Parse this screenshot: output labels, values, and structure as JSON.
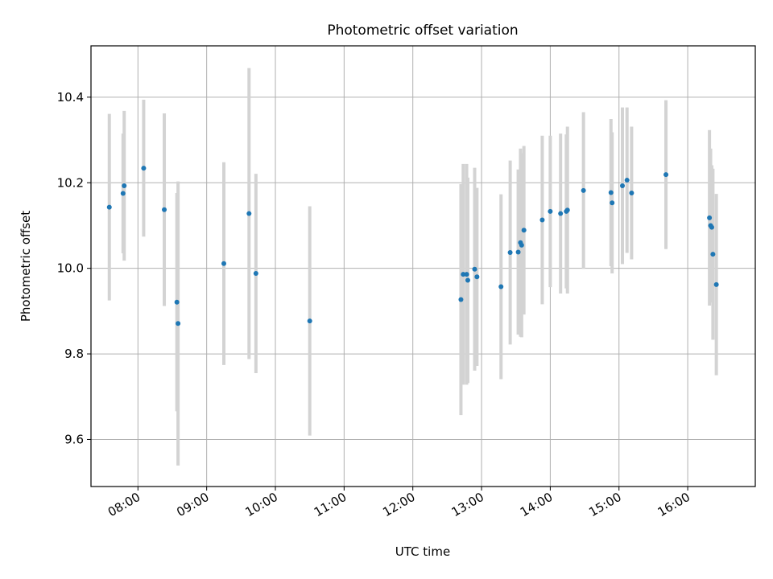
{
  "chart_data": {
    "type": "scatter",
    "title": "Photometric offset variation",
    "xlabel": "UTC time",
    "ylabel": "Photometric offset",
    "x_axis_type": "time",
    "xlim": [
      "07:19",
      "16:59"
    ],
    "ylim": [
      9.49,
      10.52
    ],
    "grid": true,
    "x_ticks": [
      "08:00",
      "09:00",
      "10:00",
      "11:00",
      "12:00",
      "13:00",
      "14:00",
      "15:00",
      "16:00"
    ],
    "y_ticks": [
      9.6,
      9.8,
      10.0,
      10.2,
      10.4
    ],
    "y_tick_labels": [
      "9.6",
      "9.8",
      "10.0",
      "10.2",
      "10.4"
    ],
    "colors": {
      "point": "#1f77b4",
      "errorbar": "#d3d3d3",
      "grid": "#b0b0b0"
    },
    "points": [
      {
        "x": "07:35",
        "y": 10.143,
        "yerr": 0.218
      },
      {
        "x": "07:47",
        "y": 10.175,
        "yerr": 0.14
      },
      {
        "x": "07:48",
        "y": 10.193,
        "yerr": 0.175
      },
      {
        "x": "08:05",
        "y": 10.234,
        "yerr": 0.16
      },
      {
        "x": "08:23",
        "y": 10.137,
        "yerr": 0.225
      },
      {
        "x": "08:34",
        "y": 9.921,
        "yerr": 0.255
      },
      {
        "x": "08:35",
        "y": 9.871,
        "yerr": 0.332
      },
      {
        "x": "09:15",
        "y": 10.011,
        "yerr": 0.237
      },
      {
        "x": "09:37",
        "y": 10.128,
        "yerr": 0.34
      },
      {
        "x": "09:43",
        "y": 9.988,
        "yerr": 0.233
      },
      {
        "x": "10:30",
        "y": 9.877,
        "yerr": 0.268
      },
      {
        "x": "12:42",
        "y": 9.927,
        "yerr": 0.27
      },
      {
        "x": "12:44",
        "y": 9.986,
        "yerr": 0.258
      },
      {
        "x": "12:47",
        "y": 9.986,
        "yerr": 0.258
      },
      {
        "x": "12:48",
        "y": 9.972,
        "yerr": 0.24
      },
      {
        "x": "12:54",
        "y": 9.998,
        "yerr": 0.237
      },
      {
        "x": "12:56",
        "y": 9.98,
        "yerr": 0.208
      },
      {
        "x": "13:17",
        "y": 9.957,
        "yerr": 0.216
      },
      {
        "x": "13:25",
        "y": 10.037,
        "yerr": 0.215
      },
      {
        "x": "13:32",
        "y": 10.038,
        "yerr": 0.193
      },
      {
        "x": "13:34",
        "y": 10.06,
        "yerr": 0.22
      },
      {
        "x": "13:35",
        "y": 10.054,
        "yerr": 0.215
      },
      {
        "x": "13:37",
        "y": 10.089,
        "yerr": 0.197
      },
      {
        "x": "13:53",
        "y": 10.113,
        "yerr": 0.197
      },
      {
        "x": "14:00",
        "y": 10.133,
        "yerr": 0.177
      },
      {
        "x": "14:09",
        "y": 10.128,
        "yerr": 0.187
      },
      {
        "x": "14:14",
        "y": 10.133,
        "yerr": 0.18
      },
      {
        "x": "14:15",
        "y": 10.136,
        "yerr": 0.195
      },
      {
        "x": "14:29",
        "y": 10.182,
        "yerr": 0.183
      },
      {
        "x": "14:53",
        "y": 10.177,
        "yerr": 0.172
      },
      {
        "x": "14:54",
        "y": 10.153,
        "yerr": 0.165
      },
      {
        "x": "15:03",
        "y": 10.193,
        "yerr": 0.183
      },
      {
        "x": "15:07",
        "y": 10.206,
        "yerr": 0.17
      },
      {
        "x": "15:11",
        "y": 10.176,
        "yerr": 0.155
      },
      {
        "x": "15:41",
        "y": 10.219,
        "yerr": 0.174
      },
      {
        "x": "16:19",
        "y": 10.118,
        "yerr": 0.205
      },
      {
        "x": "16:20",
        "y": 10.1,
        "yerr": 0.18
      },
      {
        "x": "16:21",
        "y": 10.096,
        "yerr": 0.145
      },
      {
        "x": "16:22",
        "y": 10.033,
        "yerr": 0.2
      },
      {
        "x": "16:25",
        "y": 9.962,
        "yerr": 0.212
      }
    ]
  }
}
